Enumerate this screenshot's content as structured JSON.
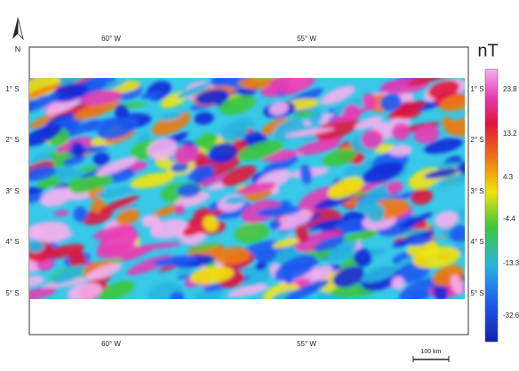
{
  "north": "N",
  "lon_labels": [
    "60° W",
    "55° W"
  ],
  "lat_labels": [
    "1° S",
    "2° S",
    "3° S",
    "4° S",
    "5° S"
  ],
  "colorbar": {
    "unit": "nT",
    "labels": [
      "23.8",
      "13.2",
      "4.3",
      "-4.4",
      "-13.3",
      "-32.6"
    ]
  },
  "scale_bar": "100 km"
}
